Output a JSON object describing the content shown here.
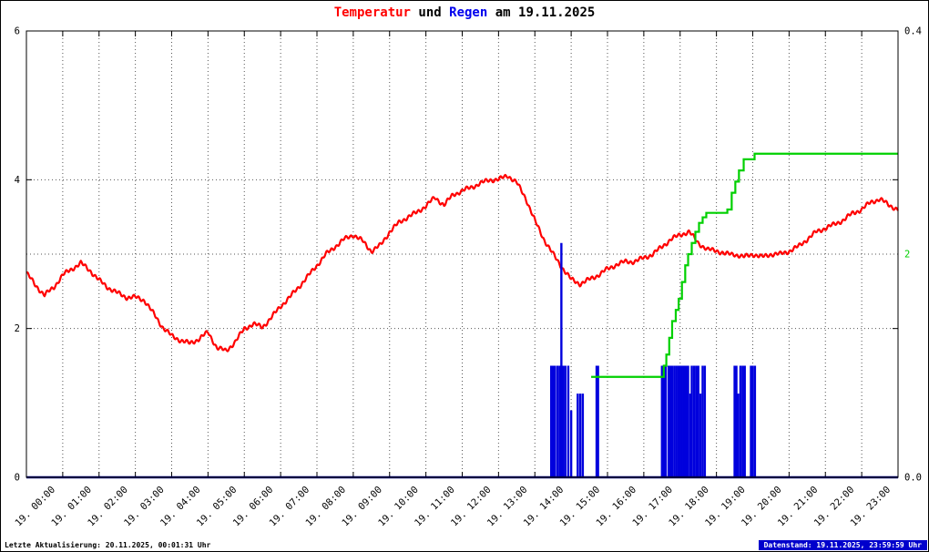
{
  "title": {
    "t1": "Temperatur",
    "t2": " und ",
    "t3": "Regen",
    "t4": " am 19.11.2025"
  },
  "footer": {
    "left": "Letzte Aktualisierung: 20.11.2025, 00:01:31 Uhr",
    "right": "Datenstand: 19.11.2025, 23:59:59 Uhr"
  },
  "colors": {
    "temperature": "#ff0000",
    "rain": "#0000dd",
    "rain_sum": "#00d000",
    "baseline": "#000080",
    "title_regen": "#0000ee",
    "badge_bg": "#0000cc",
    "grid": "#555555"
  },
  "chart_data": {
    "type": "line",
    "title": "Temperatur und Regen am 19.11.2025",
    "x": {
      "unit": "hour",
      "min": 0,
      "max": 24,
      "tick_hours": [
        0,
        1,
        2,
        3,
        4,
        5,
        6,
        7,
        8,
        9,
        10,
        11,
        12,
        13,
        14,
        15,
        16,
        17,
        18,
        19,
        20,
        21,
        22,
        23
      ],
      "tick_labels": [
        "19. 00:00",
        "19. 01:00",
        "19. 02:00",
        "19. 03:00",
        "19. 04:00",
        "19. 05:00",
        "19. 06:00",
        "19. 07:00",
        "19. 08:00",
        "19. 09:00",
        "19. 10:00",
        "19. 11:00",
        "19. 12:00",
        "19. 13:00",
        "19. 14:00",
        "19. 15:00",
        "19. 16:00",
        "19. 17:00",
        "19. 18:00",
        "19. 19:00",
        "19. 20:00",
        "19. 21:00",
        "19. 22:00",
        "19. 23:00"
      ]
    },
    "axes": {
      "left": {
        "min": 0,
        "max": 6,
        "tick_values": [
          0,
          2,
          4,
          6
        ],
        "tick_labels": [
          "0",
          "2",
          "4",
          "6"
        ]
      },
      "right_rain": {
        "min": 0,
        "max": 0.4,
        "tick_values": [
          0,
          0.4
        ],
        "tick_labels": [
          "0.0",
          "0.4"
        ]
      },
      "right_sum": {
        "min": 0,
        "max": 4,
        "tick_values": [
          2
        ],
        "tick_labels": [
          "2"
        ]
      }
    },
    "grid": {
      "h_left_values": [
        2,
        3,
        4
      ],
      "v_hours": [
        1,
        2,
        3,
        4,
        5,
        6,
        7,
        8,
        9,
        10,
        11,
        12,
        13,
        14,
        15,
        16,
        17,
        18,
        19,
        20,
        21,
        22,
        23
      ]
    },
    "series": [
      {
        "name": "Temperatur",
        "type": "line",
        "axis": "left",
        "color": "#ff0000",
        "width": 2.2,
        "noisy": true,
        "points": [
          [
            0,
            2.75
          ],
          [
            0.25,
            2.58
          ],
          [
            0.5,
            2.45
          ],
          [
            0.75,
            2.55
          ],
          [
            1,
            2.72
          ],
          [
            1.25,
            2.8
          ],
          [
            1.5,
            2.88
          ],
          [
            1.75,
            2.78
          ],
          [
            2,
            2.65
          ],
          [
            2.25,
            2.55
          ],
          [
            2.5,
            2.48
          ],
          [
            2.75,
            2.42
          ],
          [
            3,
            2.42
          ],
          [
            3.25,
            2.38
          ],
          [
            3.5,
            2.2
          ],
          [
            3.75,
            2.02
          ],
          [
            4,
            1.9
          ],
          [
            4.25,
            1.84
          ],
          [
            4.5,
            1.8
          ],
          [
            4.75,
            1.86
          ],
          [
            5,
            1.95
          ],
          [
            5.25,
            1.74
          ],
          [
            5.5,
            1.7
          ],
          [
            5.75,
            1.82
          ],
          [
            6,
            2.0
          ],
          [
            6.25,
            2.06
          ],
          [
            6.5,
            2.02
          ],
          [
            6.75,
            2.15
          ],
          [
            7,
            2.3
          ],
          [
            7.25,
            2.42
          ],
          [
            7.5,
            2.56
          ],
          [
            7.75,
            2.7
          ],
          [
            8,
            2.85
          ],
          [
            8.25,
            3.0
          ],
          [
            8.5,
            3.1
          ],
          [
            8.75,
            3.2
          ],
          [
            9,
            3.26
          ],
          [
            9.25,
            3.18
          ],
          [
            9.5,
            3.04
          ],
          [
            9.75,
            3.12
          ],
          [
            10,
            3.3
          ],
          [
            10.25,
            3.42
          ],
          [
            10.5,
            3.5
          ],
          [
            10.75,
            3.56
          ],
          [
            11,
            3.65
          ],
          [
            11.25,
            3.76
          ],
          [
            11.5,
            3.66
          ],
          [
            11.75,
            3.8
          ],
          [
            12,
            3.85
          ],
          [
            12.25,
            3.9
          ],
          [
            12.5,
            3.95
          ],
          [
            12.75,
            4.0
          ],
          [
            13,
            4.0
          ],
          [
            13.25,
            4.06
          ],
          [
            13.5,
            3.96
          ],
          [
            13.75,
            3.75
          ],
          [
            14,
            3.45
          ],
          [
            14.25,
            3.2
          ],
          [
            14.5,
            3.0
          ],
          [
            14.75,
            2.82
          ],
          [
            15,
            2.66
          ],
          [
            15.25,
            2.6
          ],
          [
            15.5,
            2.66
          ],
          [
            15.75,
            2.72
          ],
          [
            16,
            2.8
          ],
          [
            16.25,
            2.86
          ],
          [
            16.5,
            2.9
          ],
          [
            16.75,
            2.9
          ],
          [
            17,
            2.95
          ],
          [
            17.25,
            3.0
          ],
          [
            17.5,
            3.1
          ],
          [
            17.75,
            3.2
          ],
          [
            18,
            3.26
          ],
          [
            18.25,
            3.3
          ],
          [
            18.5,
            3.15
          ],
          [
            18.75,
            3.06
          ],
          [
            19,
            3.05
          ],
          [
            19.25,
            3.0
          ],
          [
            19.5,
            3.0
          ],
          [
            19.75,
            2.96
          ],
          [
            20,
            3.0
          ],
          [
            20.25,
            2.96
          ],
          [
            20.5,
            3.0
          ],
          [
            20.75,
            3.0
          ],
          [
            21,
            3.04
          ],
          [
            21.25,
            3.1
          ],
          [
            21.5,
            3.2
          ],
          [
            21.75,
            3.3
          ],
          [
            22,
            3.35
          ],
          [
            22.25,
            3.4
          ],
          [
            22.5,
            3.46
          ],
          [
            22.75,
            3.55
          ],
          [
            23,
            3.6
          ],
          [
            23.25,
            3.7
          ],
          [
            23.5,
            3.74
          ],
          [
            23.75,
            3.66
          ],
          [
            24,
            3.6
          ]
        ]
      },
      {
        "name": "Regen",
        "type": "bars",
        "axis": "right_rain",
        "color": "#0000dd",
        "width": 2.4,
        "points": [
          [
            14.45,
            0.1
          ],
          [
            14.5,
            0.1
          ],
          [
            14.55,
            0.1
          ],
          [
            14.62,
            0.1
          ],
          [
            14.68,
            0.1
          ],
          [
            14.73,
            0.21
          ],
          [
            14.78,
            0.1
          ],
          [
            14.84,
            0.1
          ],
          [
            14.92,
            0.1
          ],
          [
            15.0,
            0.06
          ],
          [
            15.18,
            0.075
          ],
          [
            15.25,
            0.075
          ],
          [
            15.32,
            0.075
          ],
          [
            15.7,
            0.1
          ],
          [
            15.74,
            0.1
          ],
          [
            17.5,
            0.1
          ],
          [
            17.55,
            0.1
          ],
          [
            17.6,
            0.1
          ],
          [
            17.68,
            0.1
          ],
          [
            17.73,
            0.1
          ],
          [
            17.78,
            0.1
          ],
          [
            17.84,
            0.1
          ],
          [
            17.9,
            0.1
          ],
          [
            17.96,
            0.1
          ],
          [
            18.0,
            0.1
          ],
          [
            18.05,
            0.1
          ],
          [
            18.1,
            0.1
          ],
          [
            18.14,
            0.1
          ],
          [
            18.18,
            0.1
          ],
          [
            18.22,
            0.1
          ],
          [
            18.28,
            0.075
          ],
          [
            18.32,
            0.1
          ],
          [
            18.38,
            0.1
          ],
          [
            18.44,
            0.1
          ],
          [
            18.5,
            0.1
          ],
          [
            18.56,
            0.075
          ],
          [
            18.62,
            0.1
          ],
          [
            18.68,
            0.1
          ],
          [
            19.5,
            0.1
          ],
          [
            19.55,
            0.1
          ],
          [
            19.6,
            0.075
          ],
          [
            19.66,
            0.1
          ],
          [
            19.72,
            0.1
          ],
          [
            19.78,
            0.1
          ],
          [
            19.95,
            0.1
          ],
          [
            20.0,
            0.1
          ],
          [
            20.06,
            0.1
          ]
        ]
      },
      {
        "name": "Regensumme",
        "type": "step",
        "axis": "right_sum",
        "color": "#00d000",
        "width": 2.2,
        "points": [
          [
            15.55,
            0.9
          ],
          [
            17.5,
            0.9
          ],
          [
            17.55,
            1.0
          ],
          [
            17.62,
            1.1
          ],
          [
            17.7,
            1.25
          ],
          [
            17.78,
            1.4
          ],
          [
            17.88,
            1.5
          ],
          [
            17.96,
            1.6
          ],
          [
            18.05,
            1.75
          ],
          [
            18.14,
            1.9
          ],
          [
            18.22,
            2.0
          ],
          [
            18.32,
            2.1
          ],
          [
            18.42,
            2.2
          ],
          [
            18.52,
            2.28
          ],
          [
            18.62,
            2.33
          ],
          [
            18.72,
            2.37
          ],
          [
            19.3,
            2.4
          ],
          [
            19.42,
            2.55
          ],
          [
            19.52,
            2.65
          ],
          [
            19.62,
            2.75
          ],
          [
            19.75,
            2.85
          ],
          [
            20.05,
            2.9
          ],
          [
            24,
            2.9
          ]
        ]
      },
      {
        "name": "Nulllinie",
        "type": "line",
        "axis": "left",
        "color": "#000080",
        "width": 2.5,
        "points": [
          [
            0,
            0
          ],
          [
            24,
            0
          ]
        ]
      }
    ]
  }
}
